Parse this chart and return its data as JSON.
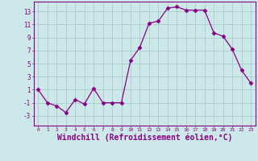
{
  "x": [
    0,
    1,
    2,
    3,
    4,
    5,
    6,
    7,
    8,
    9,
    10,
    11,
    12,
    13,
    14,
    15,
    16,
    17,
    18,
    19,
    20,
    21,
    22,
    23
  ],
  "y": [
    1,
    -1,
    -1.5,
    -2.5,
    -0.5,
    -1.2,
    1.2,
    -1,
    -1,
    -1,
    5.5,
    7.5,
    11.2,
    11.5,
    13.5,
    13.7,
    13.2,
    13.2,
    13.2,
    9.7,
    9.2,
    7.2,
    4,
    2
  ],
  "line_color": "#880088",
  "marker": "D",
  "marker_size": 2.5,
  "xlabel": "Windchill (Refroidissement éolien,°C)",
  "xlabel_fontsize": 7,
  "ylabel_ticks": [
    -3,
    -1,
    1,
    3,
    5,
    7,
    9,
    11,
    13
  ],
  "xlim": [
    -0.5,
    23.5
  ],
  "ylim": [
    -4.5,
    14.5
  ],
  "background_color": "#cce8e8",
  "grid_color": "#aacccc",
  "tick_color": "#880088",
  "spine_color": "#880088"
}
